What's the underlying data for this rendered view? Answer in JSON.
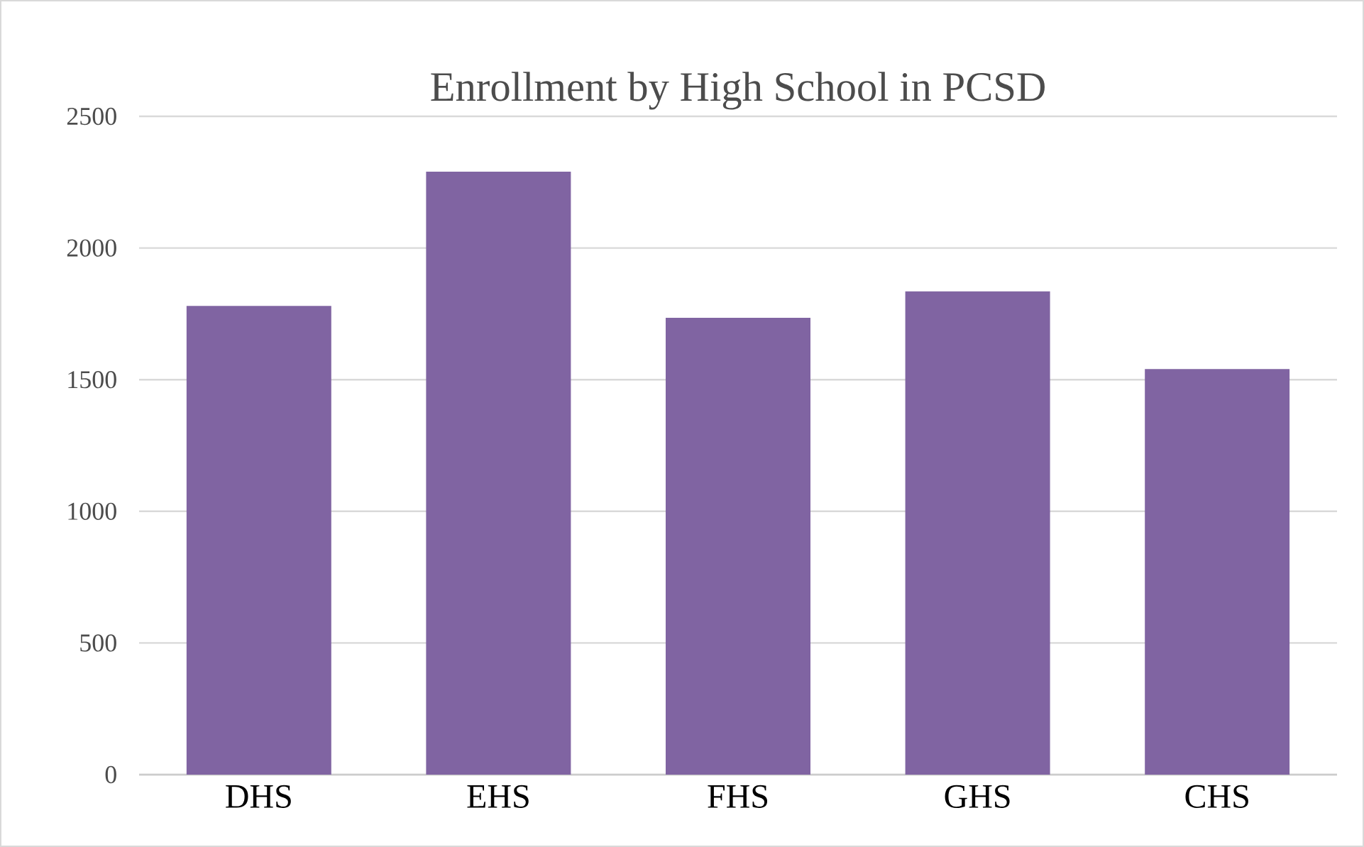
{
  "chart_data": {
    "type": "bar",
    "title": "Enrollment by High School in PCSD",
    "categories": [
      "DHS",
      "EHS",
      "FHS",
      "GHS",
      "CHS"
    ],
    "values": [
      1780,
      2290,
      1735,
      1835,
      1540
    ],
    "color": "#8064a2",
    "ylim": [
      0,
      2500
    ],
    "yticks": [
      0,
      500,
      1000,
      1500,
      2000,
      2500
    ],
    "grid": "y"
  }
}
